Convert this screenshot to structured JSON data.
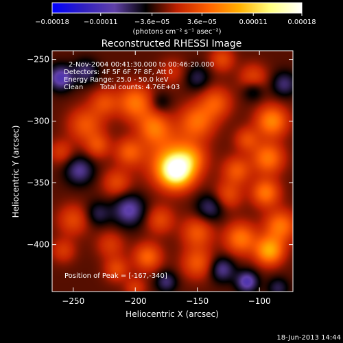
{
  "chart_data": {
    "type": "heatmap",
    "title": "Reconstructed RHESSI Image",
    "xlabel": "Heliocentric X (arcsec)",
    "ylabel": "Heliocentric Y (arcsec)",
    "xlim": [
      -267,
      -73
    ],
    "ylim": [
      -438,
      -243
    ],
    "x_ticks": [
      -250,
      -200,
      -150,
      -100
    ],
    "x_tick_labels": [
      "−250",
      "−200",
      "−150",
      "−100"
    ],
    "y_ticks": [
      -250,
      -300,
      -350,
      -400
    ],
    "y_tick_labels": [
      "−250",
      "−300",
      "−350",
      "−400"
    ],
    "colorbar": {
      "range": [
        -0.00018,
        0.00018
      ],
      "ticks": [
        -0.00018,
        -0.00011,
        -3.6e-05,
        3.6e-05,
        0.00011,
        0.00018
      ],
      "tick_labels": [
        "−0.00018",
        "−0.00011",
        "−3.6e−05",
        "3.6e−05",
        "0.00011",
        "0.00018"
      ],
      "unit_label": "(photons cm⁻² s⁻¹ asec⁻²)",
      "colors": [
        "#0000ff",
        "#3020c0",
        "#6040a8",
        "#000000",
        "#c02000",
        "#ff6000",
        "#ffb000",
        "#ffff80",
        "#ffffff"
      ]
    },
    "peak": {
      "x": -167,
      "y": -340
    },
    "sources": [
      {
        "x": -167,
        "y": -340,
        "flux": 0.00018,
        "sigma": 9
      },
      {
        "x": -170,
        "y": -330,
        "flux": 7e-05,
        "sigma": 16
      },
      {
        "x": -200,
        "y": -285,
        "flux": 8e-05,
        "sigma": 10
      },
      {
        "x": -185,
        "y": -305,
        "flux": 7e-05,
        "sigma": 9
      },
      {
        "x": -150,
        "y": -300,
        "flux": 7e-05,
        "sigma": 10
      },
      {
        "x": -135,
        "y": -285,
        "flux": 6e-05,
        "sigma": 9
      },
      {
        "x": -155,
        "y": -330,
        "flux": 5e-05,
        "sigma": 8
      },
      {
        "x": -240,
        "y": -303,
        "flux": 6e-05,
        "sigma": 10
      },
      {
        "x": -225,
        "y": -285,
        "flux": 5e-05,
        "sigma": 8
      },
      {
        "x": -260,
        "y": -325,
        "flux": 4e-05,
        "sigma": 7
      },
      {
        "x": -205,
        "y": -325,
        "flux": 6e-05,
        "sigma": 8
      },
      {
        "x": -215,
        "y": -350,
        "flux": 5e-05,
        "sigma": 8
      },
      {
        "x": -230,
        "y": -320,
        "flux": 5e-05,
        "sigma": 7
      },
      {
        "x": -90,
        "y": -300,
        "flux": 9e-05,
        "sigma": 9
      },
      {
        "x": -93,
        "y": -330,
        "flux": 8e-05,
        "sigma": 9
      },
      {
        "x": -95,
        "y": -358,
        "flux": 8e-05,
        "sigma": 8
      },
      {
        "x": -83,
        "y": -385,
        "flux": 8e-05,
        "sigma": 9
      },
      {
        "x": -92,
        "y": -405,
        "flux": 0.00011,
        "sigma": 8
      },
      {
        "x": -115,
        "y": -395,
        "flux": 8e-05,
        "sigma": 9
      },
      {
        "x": -118,
        "y": -340,
        "flux": 6e-05,
        "sigma": 8
      },
      {
        "x": -110,
        "y": -315,
        "flux": 5e-05,
        "sigma": 7
      },
      {
        "x": -125,
        "y": -360,
        "flux": 5e-05,
        "sigma": 8
      },
      {
        "x": -150,
        "y": -390,
        "flux": 6e-05,
        "sigma": 9
      },
      {
        "x": -150,
        "y": -415,
        "flux": 6e-05,
        "sigma": 9
      },
      {
        "x": -180,
        "y": -380,
        "flux": 5e-05,
        "sigma": 8
      },
      {
        "x": -190,
        "y": -410,
        "flux": 7e-05,
        "sigma": 8
      },
      {
        "x": -220,
        "y": -400,
        "flux": 4e-05,
        "sigma": 8
      },
      {
        "x": -215,
        "y": -420,
        "flux": 5e-05,
        "sigma": 7
      },
      {
        "x": -250,
        "y": -380,
        "flux": 5e-05,
        "sigma": 9
      },
      {
        "x": -258,
        "y": -405,
        "flux": 4e-05,
        "sigma": 7
      },
      {
        "x": -200,
        "y": -435,
        "flux": 4e-05,
        "sigma": 6
      },
      {
        "x": -130,
        "y": -250,
        "flux": 5e-05,
        "sigma": 7
      },
      {
        "x": -105,
        "y": -265,
        "flux": 5e-05,
        "sigma": 8
      },
      {
        "x": -170,
        "y": -260,
        "flux": 3e-05,
        "sigma": 8
      },
      {
        "x": -245,
        "y": -340,
        "flux": -6e-05,
        "sigma": 8
      },
      {
        "x": -260,
        "y": -265,
        "flux": -8e-05,
        "sigma": 7
      },
      {
        "x": -240,
        "y": -260,
        "flux": -5e-05,
        "sigma": 7
      },
      {
        "x": -205,
        "y": -372,
        "flux": -7e-05,
        "sigma": 9
      },
      {
        "x": -140,
        "y": -370,
        "flux": -5e-05,
        "sigma": 8
      },
      {
        "x": -105,
        "y": -275,
        "flux": -4e-05,
        "sigma": 6
      },
      {
        "x": -80,
        "y": -270,
        "flux": -5e-05,
        "sigma": 7
      },
      {
        "x": -110,
        "y": -430,
        "flux": -8e-05,
        "sigma": 6
      },
      {
        "x": -130,
        "y": -420,
        "flux": -6e-05,
        "sigma": 7
      },
      {
        "x": -85,
        "y": -435,
        "flux": -4e-05,
        "sigma": 6
      },
      {
        "x": -175,
        "y": -430,
        "flux": -5e-05,
        "sigma": 6
      },
      {
        "x": -230,
        "y": -375,
        "flux": -4e-05,
        "sigma": 7
      },
      {
        "x": -150,
        "y": -265,
        "flux": -4e-05,
        "sigma": 7
      },
      {
        "x": -180,
        "y": -285,
        "flux": -3e-05,
        "sigma": 6
      }
    ]
  },
  "annotations": {
    "time_range": "2-Nov-2004 00:41:30.000 to 00:46:20.000",
    "detectors": "Detectors: 4F 5F 6F 7F 8F, Att 0",
    "energy_range": "Energy Range: 25.0 - 50.0 keV",
    "method": "Clean",
    "total_counts": "Total counts: 4.76E+03",
    "peak_position": "Position of Peak = [-167,-340]"
  },
  "footer": {
    "date_stamp": "18-Jun-2013 14:44"
  }
}
